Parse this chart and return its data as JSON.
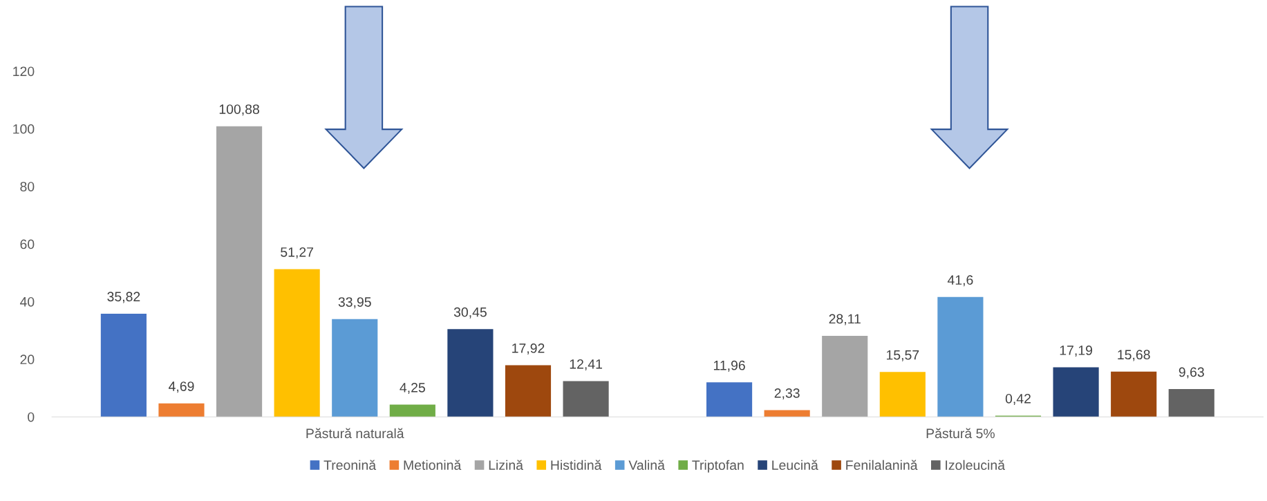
{
  "chart_data": {
    "type": "bar",
    "categories": [
      "Păstură naturală",
      "Păstură 5%"
    ],
    "series": [
      {
        "name": "Treonină",
        "color": "#4472c4",
        "values": [
          35.82,
          11.96
        ],
        "value_labels": [
          "35,82",
          "11,96"
        ]
      },
      {
        "name": "Metionină",
        "color": "#ed7d31",
        "values": [
          4.69,
          2.33
        ],
        "value_labels": [
          "4,69",
          "2,33"
        ]
      },
      {
        "name": "Lizină",
        "color": "#a5a5a5",
        "values": [
          100.88,
          28.11
        ],
        "value_labels": [
          "100,88",
          "28,11"
        ]
      },
      {
        "name": "Histidină",
        "color": "#ffc000",
        "values": [
          51.27,
          15.57
        ],
        "value_labels": [
          "51,27",
          "15,57"
        ]
      },
      {
        "name": "Valină",
        "color": "#5b9bd5",
        "values": [
          33.95,
          41.6
        ],
        "value_labels": [
          "33,95",
          "41,6"
        ]
      },
      {
        "name": "Triptofan",
        "color": "#70ad47",
        "values": [
          4.25,
          0.42
        ],
        "value_labels": [
          "4,25",
          "0,42"
        ]
      },
      {
        "name": "Leucină",
        "color": "#264478",
        "values": [
          30.45,
          17.19
        ],
        "value_labels": [
          "30,45",
          "17,19"
        ]
      },
      {
        "name": "Fenilalanină",
        "color": "#9e480e",
        "values": [
          17.92,
          15.68
        ],
        "value_labels": [
          "17,92",
          "15,68"
        ]
      },
      {
        "name": "Izoleucină",
        "color": "#636363",
        "values": [
          12.41,
          9.63
        ],
        "value_labels": [
          "12,41",
          "9,63"
        ]
      }
    ],
    "ylim": [
      0,
      120
    ],
    "yticks": [
      0,
      20,
      40,
      60,
      80,
      100,
      120
    ],
    "grid": false,
    "legend": "bottom"
  }
}
